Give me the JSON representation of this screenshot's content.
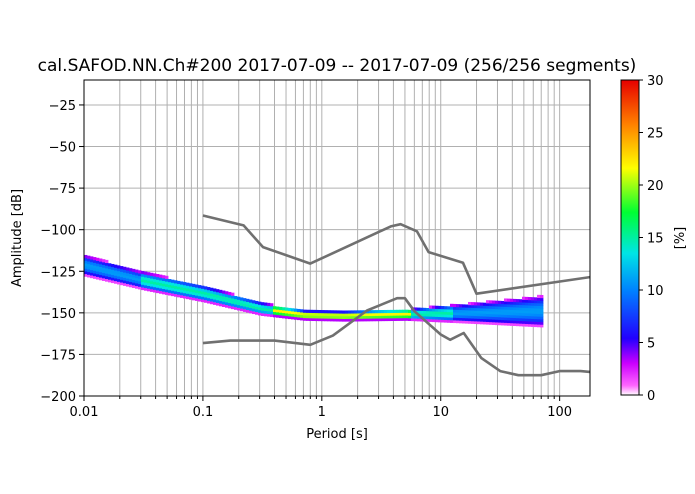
{
  "chart_data": {
    "type": "heatmap",
    "title": "cal.SAFOD.NN.Ch#200   2017-07-09 -- 2017-07-09  (256/256 segments)",
    "xlabel": "Period [s]",
    "ylabel": "Amplitude [dB]",
    "x_scale": "log",
    "xlim": [
      0.01,
      180
    ],
    "ylim": [
      -200,
      -10
    ],
    "grid": true,
    "x_ticks": [
      {
        "value": 0.01,
        "label": "0.01"
      },
      {
        "value": 0.1,
        "label": "0.1"
      },
      {
        "value": 1,
        "label": "1"
      },
      {
        "value": 10,
        "label": "10"
      },
      {
        "value": 100,
        "label": "100"
      }
    ],
    "y_ticks": [
      {
        "value": -25,
        "label": "−25"
      },
      {
        "value": -50,
        "label": "−50"
      },
      {
        "value": -75,
        "label": "−75"
      },
      {
        "value": -100,
        "label": "−100"
      },
      {
        "value": -125,
        "label": "−125"
      },
      {
        "value": -150,
        "label": "−150"
      },
      {
        "value": -175,
        "label": "−175"
      },
      {
        "value": -200,
        "label": "−200"
      }
    ],
    "colorbar": {
      "label": "[%]",
      "min": 0,
      "max": 30,
      "ticks": [
        {
          "value": 0,
          "label": "0"
        },
        {
          "value": 5,
          "label": "5"
        },
        {
          "value": 10,
          "label": "10"
        },
        {
          "value": 15,
          "label": "15"
        },
        {
          "value": 20,
          "label": "20"
        },
        {
          "value": 25,
          "label": "25"
        },
        {
          "value": 30,
          "label": "30"
        }
      ]
    },
    "density_band": {
      "description_points": [
        {
          "period": 0.01,
          "center": -122,
          "halfwidth": 6
        },
        {
          "period": 0.03,
          "center": -131,
          "halfwidth": 5
        },
        {
          "period": 0.1,
          "center": -139,
          "halfwidth": 4.5
        },
        {
          "period": 0.3,
          "center": -148,
          "halfwidth": 3.5
        },
        {
          "period": 0.7,
          "center": -152,
          "halfwidth": 2.5
        },
        {
          "period": 1.5,
          "center": -152.5,
          "halfwidth": 2.5
        },
        {
          "period": 5,
          "center": -151.5,
          "halfwidth": 3
        },
        {
          "period": 20,
          "center": -150.5,
          "halfwidth": 6
        },
        {
          "period": 70,
          "center": -149.5,
          "halfwidth": 9
        }
      ]
    },
    "series": [
      {
        "role": "upper-model",
        "color": "#707070",
        "points": [
          [
            0.1,
            -91.5
          ],
          [
            0.22,
            -97.4
          ],
          [
            0.32,
            -110.5
          ],
          [
            0.8,
            -120.4
          ],
          [
            3.8,
            -98
          ],
          [
            4.6,
            -96.7
          ],
          [
            6.3,
            -101
          ],
          [
            7.9,
            -113.5
          ],
          [
            15.4,
            -119.9
          ],
          [
            20,
            -138.5
          ],
          [
            180,
            -128.5
          ]
        ]
      },
      {
        "role": "lower-model",
        "color": "#707070",
        "points": [
          [
            0.1,
            -168.2
          ],
          [
            0.17,
            -166.7
          ],
          [
            0.4,
            -166.7
          ],
          [
            0.8,
            -169.2
          ],
          [
            1.24,
            -163.7
          ],
          [
            2.4,
            -148.6
          ],
          [
            4.3,
            -141.2
          ],
          [
            5,
            -141.2
          ],
          [
            6,
            -149
          ],
          [
            10,
            -163
          ],
          [
            12,
            -166.2
          ],
          [
            15.6,
            -162.1
          ],
          [
            21.9,
            -177.1
          ],
          [
            31.6,
            -185
          ],
          [
            45,
            -187.5
          ],
          [
            70,
            -187.5
          ],
          [
            100,
            -185
          ],
          [
            150,
            -185
          ],
          [
            180,
            -185.5
          ]
        ]
      }
    ]
  }
}
